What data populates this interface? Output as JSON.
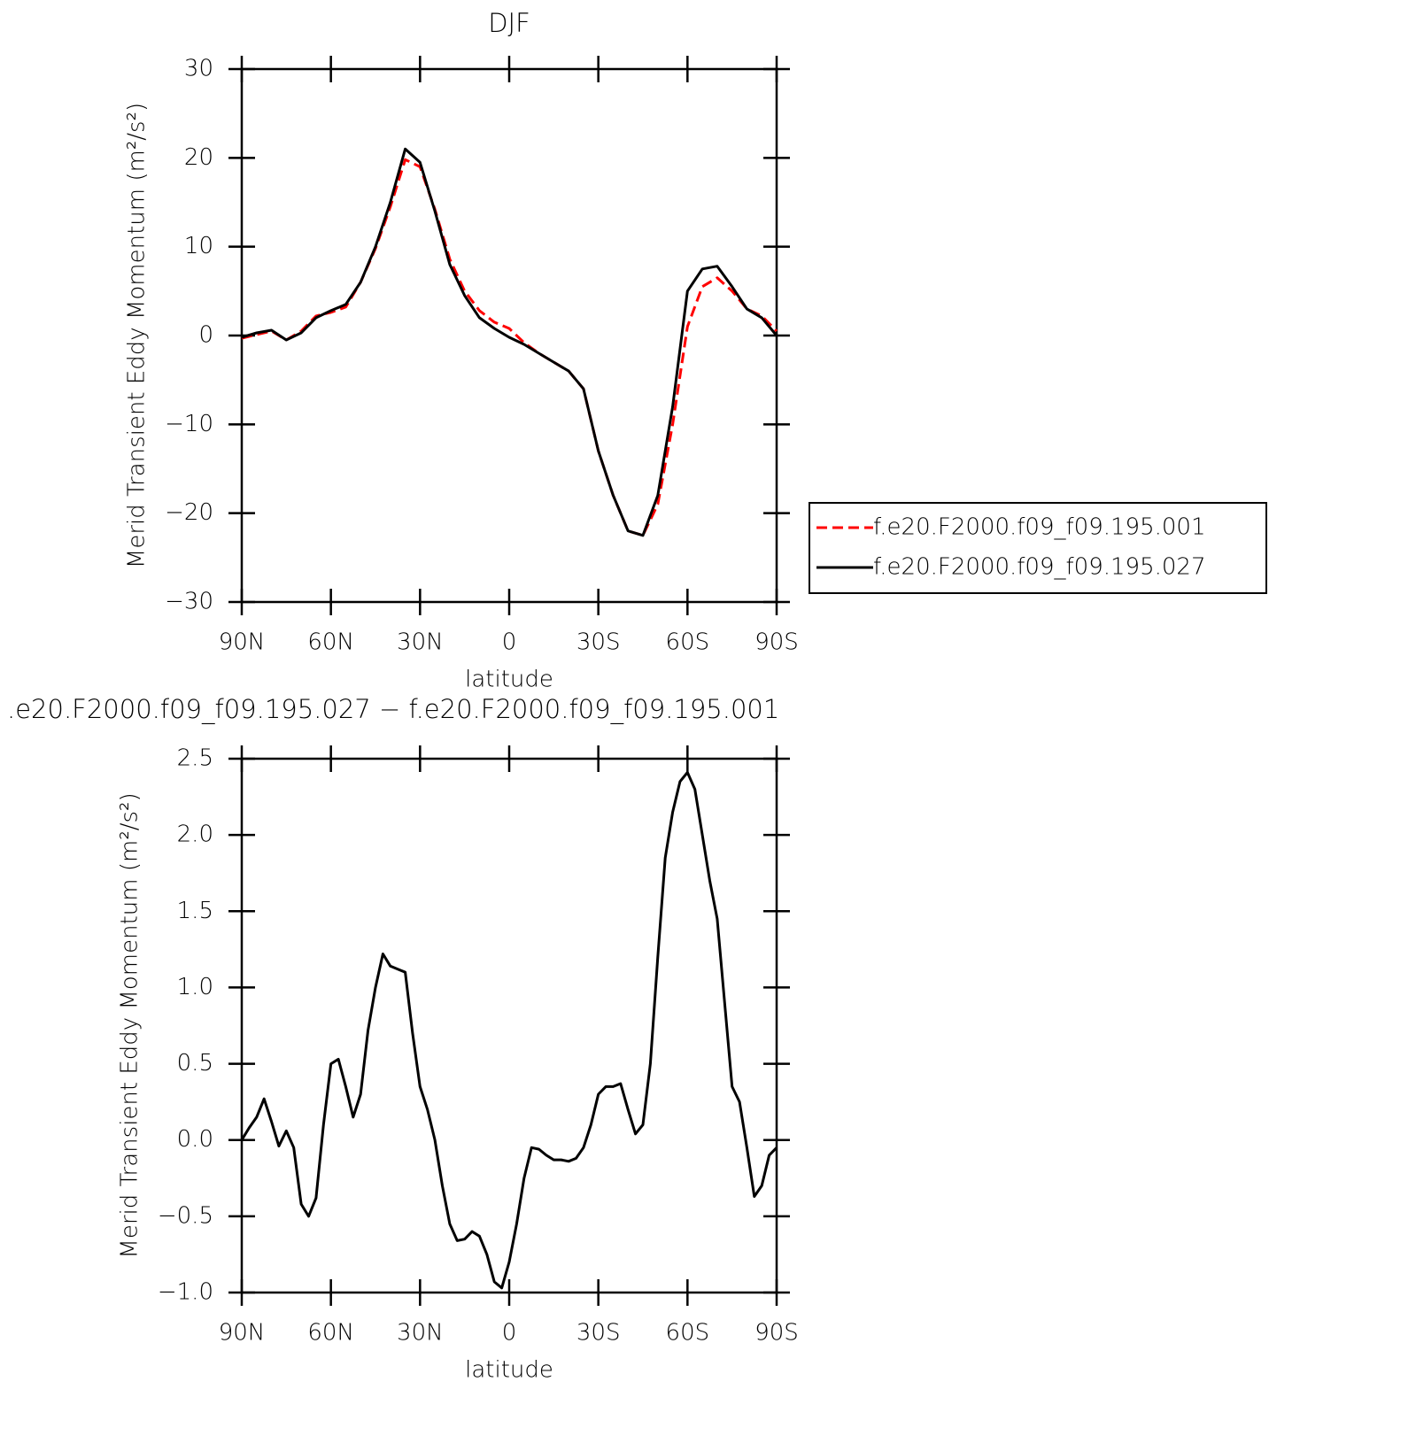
{
  "chart_data": [
    {
      "type": "line",
      "title": "DJF",
      "xlabel": "latitude",
      "ylabel": "Merid Transient Eddy Momentum (m²/s²)",
      "x": [
        90,
        85,
        80,
        75,
        70,
        65,
        60,
        55,
        50,
        45,
        40,
        35,
        30,
        25,
        20,
        15,
        10,
        5,
        0,
        -5,
        -10,
        -15,
        -20,
        -25,
        -30,
        -35,
        -40,
        -45,
        -50,
        -55,
        -60,
        -65,
        -70,
        -75,
        -80,
        -85,
        -90
      ],
      "xlim": [
        90,
        -90
      ],
      "xticks": [
        {
          "value": 90,
          "label": "90N"
        },
        {
          "value": 60,
          "label": "60N"
        },
        {
          "value": 30,
          "label": "30N"
        },
        0,
        {
          "value": -30,
          "label": "30S"
        },
        {
          "value": -60,
          "label": "60S"
        },
        {
          "value": -90,
          "label": "90S"
        }
      ],
      "ylim": [
        -30,
        30
      ],
      "yticks": [
        {
          "value": -30,
          "label": "−30"
        },
        {
          "value": -20,
          "label": "−20"
        },
        {
          "value": -10,
          "label": "−10"
        },
        0,
        10,
        20,
        30
      ],
      "legend": "right",
      "series": [
        {
          "name": "f.e20.F2000.f09_f09.195.001",
          "color": "#ff0000",
          "dashed": true,
          "values": [
            -0.3,
            0.1,
            0.5,
            -0.5,
            0.5,
            2.2,
            2.6,
            3.2,
            6,
            9.8,
            14.5,
            19.8,
            19,
            14.2,
            8.6,
            5,
            2.8,
            1.5,
            0.8,
            -0.8,
            -2,
            -3,
            -4,
            -6,
            -13,
            -18,
            -22,
            -22.5,
            -19,
            -10,
            1,
            5.5,
            6.5,
            5,
            3,
            2.2,
            0.5
          ]
        },
        {
          "name": "f.e20.F2000.f09_f09.195.027",
          "color": "#000000",
          "dashed": false,
          "values": [
            -0.2,
            0.3,
            0.6,
            -0.5,
            0.3,
            2,
            2.8,
            3.5,
            6,
            10,
            15,
            21,
            19.5,
            14,
            8,
            4.5,
            2,
            0.8,
            -0.2,
            -1,
            -2,
            -3,
            -4,
            -6,
            -13,
            -18,
            -22,
            -22.5,
            -18,
            -8,
            5,
            7.5,
            7.8,
            5.5,
            3,
            2,
            0
          ]
        }
      ]
    },
    {
      "type": "line",
      "title": ".e20.F2000.f09_f09.195.027 − f.e20.F2000.f09_f09.195.001",
      "xlabel": "latitude",
      "ylabel": "Merid Transient Eddy Momentum (m²/s²)",
      "x": [
        90,
        87.5,
        85,
        82.5,
        80,
        77.5,
        75,
        72.5,
        70,
        67.5,
        65,
        62.5,
        60,
        57.5,
        55,
        52.5,
        50,
        47.5,
        45,
        42.5,
        40,
        37.5,
        35,
        32.5,
        30,
        27.5,
        25,
        22.5,
        20,
        17.5,
        15,
        12.5,
        10,
        7.5,
        5,
        2.5,
        0,
        -2.5,
        -5,
        -7.5,
        -10,
        -12.5,
        -15,
        -17.5,
        -20,
        -22.5,
        -25,
        -27.5,
        -30,
        -32.5,
        -35,
        -37.5,
        -40,
        -42.5,
        -45,
        -47.5,
        -50,
        -52.5,
        -55,
        -57.5,
        -60,
        -62.5,
        -65,
        -67.5,
        -70,
        -72.5,
        -75,
        -77.5,
        -80,
        -82.5,
        -85,
        -87.5,
        -90
      ],
      "xlim": [
        90,
        -90
      ],
      "xticks": [
        {
          "value": 90,
          "label": "90N"
        },
        {
          "value": 60,
          "label": "60N"
        },
        {
          "value": 30,
          "label": "30N"
        },
        0,
        {
          "value": -30,
          "label": "30S"
        },
        {
          "value": -60,
          "label": "60S"
        },
        {
          "value": -90,
          "label": "90S"
        }
      ],
      "ylim": [
        -1,
        2.5
      ],
      "yticks": [
        {
          "value": -1,
          "label": "−1.0"
        },
        {
          "value": -0.5,
          "label": "−0.5"
        },
        {
          "value": 0,
          "label": "0.0"
        },
        0.5,
        {
          "value": 1,
          "label": "1.0"
        },
        1.5,
        {
          "value": 2,
          "label": "2.0"
        },
        2.5
      ],
      "series": [
        {
          "name": null,
          "color": "#000000",
          "dashed": false,
          "values": [
            0,
            0.08,
            0.15,
            0.27,
            0.12,
            -0.04,
            0.06,
            -0.05,
            -0.42,
            -0.5,
            -0.38,
            0.1,
            0.5,
            0.53,
            0.35,
            0.15,
            0.3,
            0.72,
            1,
            1.22,
            1.14,
            1.12,
            1.1,
            0.7,
            0.35,
            0.2,
            0,
            -0.3,
            -0.55,
            -0.66,
            -0.65,
            -0.6,
            -0.63,
            -0.75,
            -0.93,
            -0.97,
            -0.8,
            -0.55,
            -0.25,
            -0.05,
            -0.06,
            -0.1,
            -0.13,
            -0.13,
            -0.14,
            -0.12,
            -0.05,
            0.1,
            0.3,
            0.35,
            0.35,
            0.37,
            0.2,
            0.04,
            0.1,
            0.5,
            1.2,
            1.85,
            2.15,
            2.35,
            2.41,
            2.3,
            2,
            1.7,
            1.45,
            0.9,
            0.35,
            0.25,
            -0.05,
            -0.37,
            -0.3,
            -0.1,
            -0.05
          ]
        }
      ]
    }
  ]
}
